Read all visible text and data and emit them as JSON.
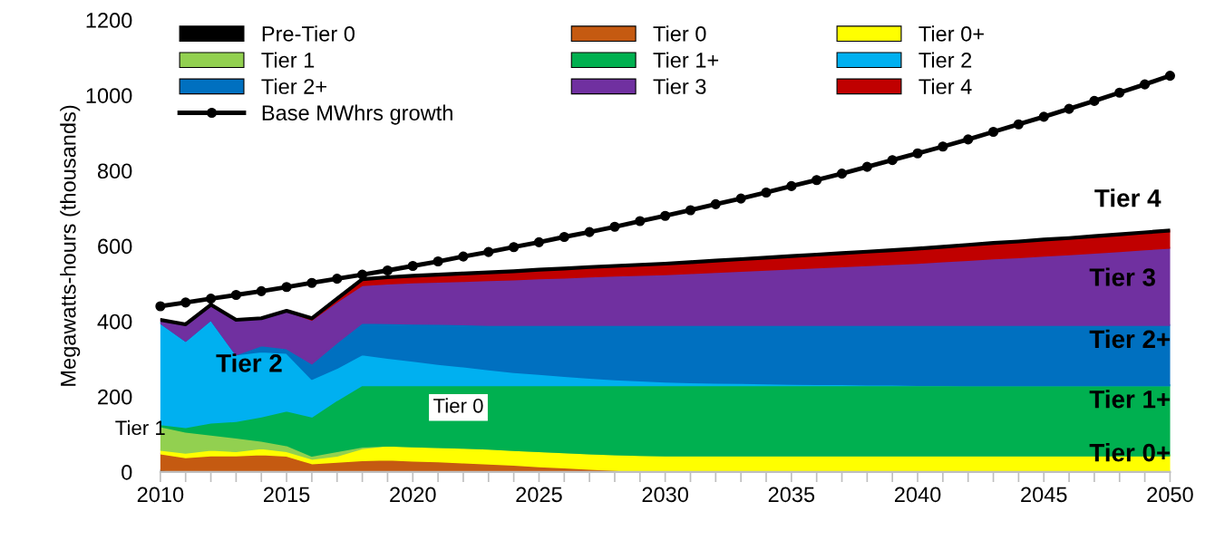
{
  "chart_data": {
    "type": "area",
    "stacked": true,
    "ylabel": "Megawatts-hours (thousands)",
    "x": [
      2010,
      2011,
      2012,
      2013,
      2014,
      2015,
      2016,
      2017,
      2018,
      2019,
      2020,
      2021,
      2022,
      2023,
      2024,
      2025,
      2026,
      2027,
      2028,
      2029,
      2030,
      2031,
      2032,
      2033,
      2034,
      2035,
      2036,
      2037,
      2038,
      2039,
      2040,
      2041,
      2042,
      2043,
      2044,
      2045,
      2046,
      2047,
      2048,
      2049,
      2050
    ],
    "xlim": [
      2010,
      2050
    ],
    "xticks": [
      2010,
      2015,
      2020,
      2025,
      2030,
      2035,
      2040,
      2045,
      2050
    ],
    "ylim": [
      0,
      1200
    ],
    "yticks": [
      0,
      200,
      400,
      600,
      800,
      1000,
      1200
    ],
    "grid": false,
    "legend": "top",
    "series": [
      {
        "name": "Pre-Tier 0",
        "color": "#000000",
        "values": [
          5,
          3,
          0,
          0,
          0,
          0,
          0,
          0,
          0,
          0,
          0,
          0,
          0,
          0,
          0,
          0,
          0,
          0,
          0,
          0,
          0,
          0,
          0,
          0,
          0,
          0,
          0,
          0,
          0,
          0,
          0,
          0,
          0,
          0,
          0,
          0,
          0,
          0,
          0,
          0,
          0
        ]
      },
      {
        "name": "Tier 0",
        "color": "#c55a11",
        "values": [
          44,
          36,
          44,
          44,
          47,
          43,
          23,
          27,
          31,
          33,
          30,
          28,
          25,
          22,
          19,
          15,
          12,
          8,
          5,
          2,
          0,
          0,
          0,
          0,
          0,
          0,
          0,
          0,
          0,
          0,
          0,
          0,
          0,
          0,
          0,
          0,
          0,
          0,
          0,
          0,
          0
        ]
      },
      {
        "name": "Tier 0+",
        "color": "#ffff00",
        "values": [
          10,
          12,
          15,
          11,
          16,
          12,
          12,
          16,
          32,
          37,
          38,
          38,
          39,
          40,
          39,
          40,
          40,
          41,
          42,
          43,
          44,
          44,
          44,
          44,
          44,
          44,
          44,
          44,
          44,
          44,
          44,
          44,
          44,
          44,
          44,
          44,
          44,
          44,
          44,
          44,
          44
        ]
      },
      {
        "name": "Tier 1",
        "color": "#92d050",
        "values": [
          62,
          56,
          40,
          36,
          20,
          16,
          8,
          12,
          4,
          0,
          0,
          0,
          0,
          0,
          0,
          0,
          0,
          0,
          0,
          0,
          0,
          0,
          0,
          0,
          0,
          0,
          0,
          0,
          0,
          0,
          0,
          0,
          0,
          0,
          0,
          0,
          0,
          0,
          0,
          0,
          0
        ]
      },
      {
        "name": "Tier 1+",
        "color": "#00b050",
        "values": [
          6,
          12,
          32,
          44,
          64,
          92,
          104,
          136,
          164,
          160,
          162,
          164,
          166,
          168,
          172,
          175,
          178,
          181,
          183,
          185,
          186,
          186,
          186,
          186,
          186,
          186,
          186,
          186,
          186,
          186,
          186,
          186,
          186,
          186,
          186,
          186,
          186,
          186,
          186,
          186,
          186
        ]
      },
      {
        "name": "Tier 2",
        "color": "#00b0f0",
        "values": [
          269,
          229,
          273,
          177,
          173,
          153,
          100,
          85,
          81,
          73,
          65,
          57,
          50,
          42,
          35,
          30,
          25,
          20,
          16,
          13,
          10,
          8,
          7,
          6,
          5,
          4,
          3,
          3,
          2,
          2,
          1,
          1,
          0,
          0,
          0,
          0,
          0,
          0,
          0,
          0,
          0
        ]
      },
      {
        "name": "Tier 2+",
        "color": "#0070c0",
        "values": [
          0,
          0,
          0,
          0,
          16,
          12,
          41,
          68,
          84,
          92,
          99,
          106,
          112,
          118,
          125,
          130,
          135,
          140,
          144,
          147,
          150,
          152,
          153,
          154,
          155,
          156,
          157,
          157,
          158,
          158,
          159,
          159,
          160,
          160,
          160,
          160,
          160,
          160,
          160,
          160,
          160
        ]
      },
      {
        "name": "Tier 3",
        "color": "#7030a0",
        "values": [
          8,
          44,
          40,
          92,
          72,
          100,
          116,
          108,
          100,
          105,
          109,
          112,
          115,
          119,
          121,
          124,
          126,
          129,
          131,
          133,
          135,
          138,
          141,
          144,
          147,
          150,
          153,
          156,
          159,
          162,
          165,
          169,
          173,
          177,
          180,
          184,
          188,
          192,
          196,
          201,
          205
        ]
      },
      {
        "name": "Tier 4",
        "color": "#c00000",
        "values": [
          0,
          0,
          0,
          0,
          0,
          0,
          4,
          8,
          16,
          17,
          18,
          19,
          20,
          21,
          22,
          23,
          24,
          25,
          26,
          27,
          28,
          29,
          30,
          31,
          32,
          33,
          34,
          35,
          36,
          37,
          38,
          39,
          40,
          41,
          42,
          43,
          43,
          44,
          45,
          45,
          46
        ]
      },
      {
        "name": "Base MWhrs growth",
        "type": "line",
        "color": "#000000",
        "marker": "circle",
        "values": [
          440,
          450,
          460,
          470,
          480,
          491,
          502,
          513,
          524,
          535,
          547,
          559,
          572,
          584,
          597,
          610,
          624,
          637,
          651,
          666,
          680,
          695,
          711,
          726,
          742,
          759,
          775,
          792,
          810,
          828,
          846,
          864,
          883,
          903,
          923,
          943,
          964,
          985,
          1007,
          1029,
          1052
        ]
      }
    ],
    "annotations": [
      "Tier 2",
      "Tier 1",
      "Tier 0",
      "Tier 4",
      "Tier 3",
      "Tier 2+",
      "Tier 1+",
      "Tier 0+"
    ]
  }
}
